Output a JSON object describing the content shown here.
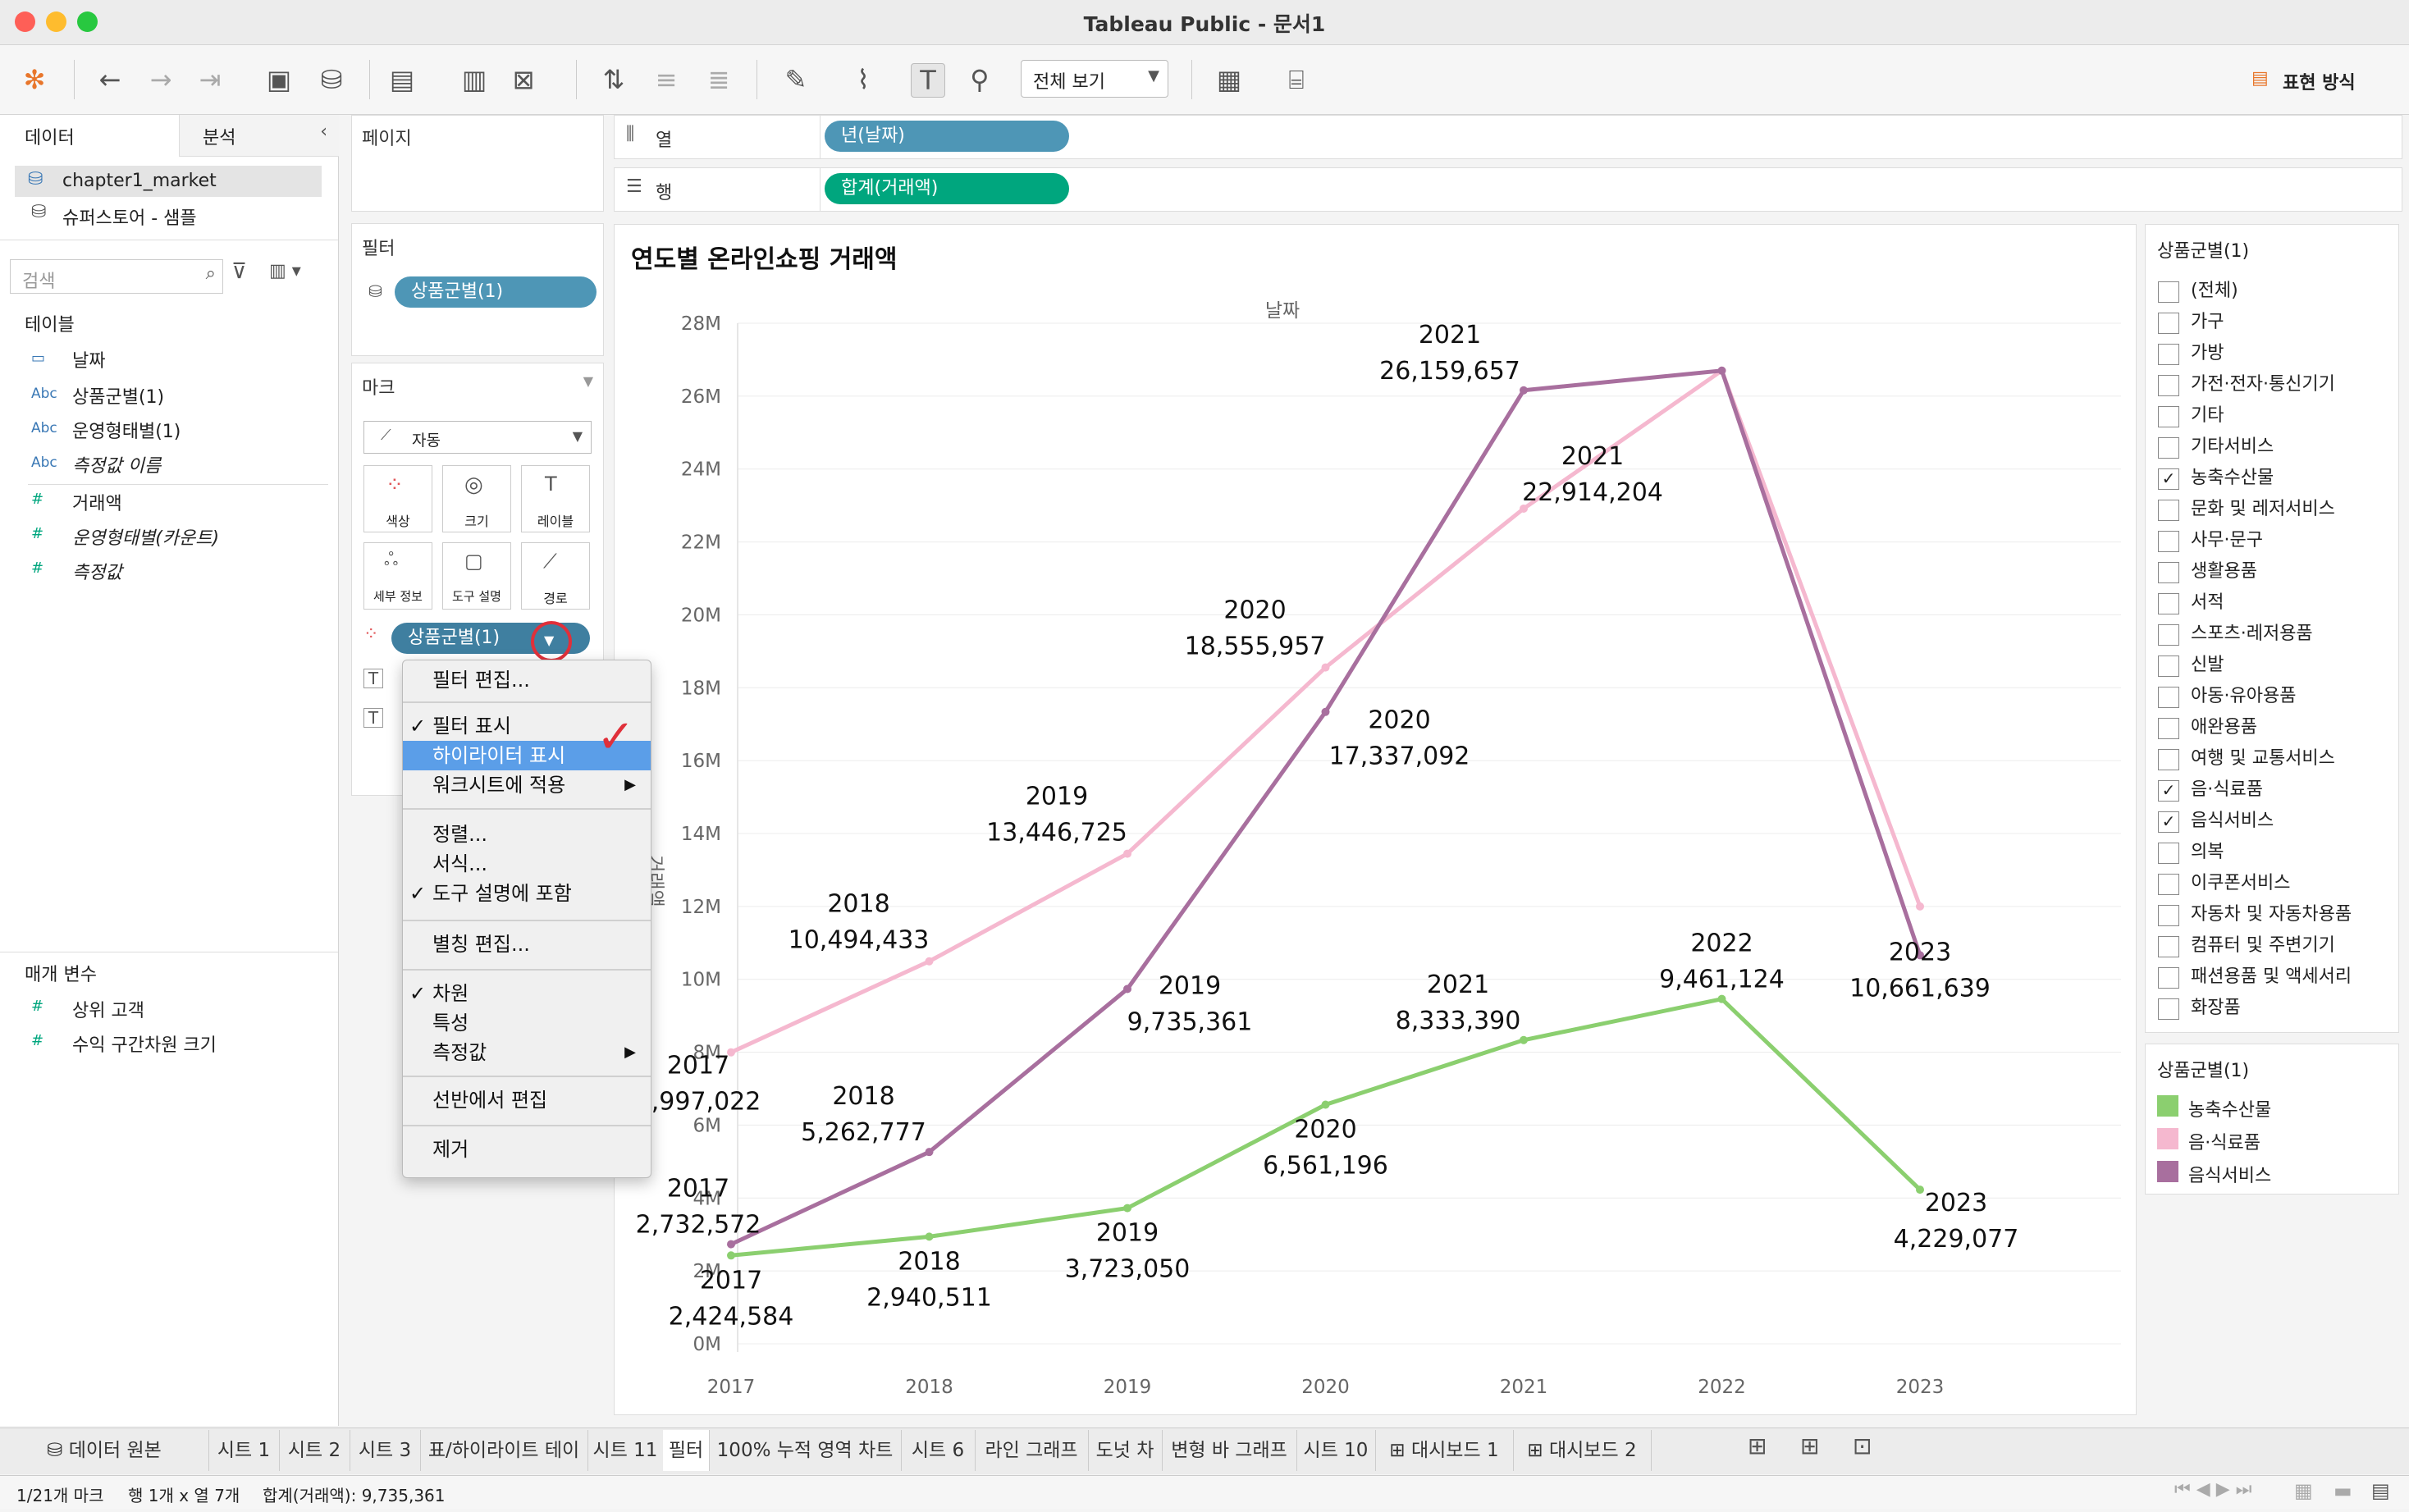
{
  "window": {
    "title": "Tableau Public - 문서1"
  },
  "toolbar": {
    "view_select": "전체 보기",
    "show_me": "표현 방식"
  },
  "data_pane": {
    "tab_data": "데이터",
    "tab_analysis": "분석",
    "sources": [
      "chapter1_market",
      "슈퍼스토어 - 샘플"
    ],
    "search_placeholder": "검색",
    "tables_heading": "테이블",
    "fields": [
      {
        "type": "date",
        "name": "날짜"
      },
      {
        "type": "Abc",
        "name": "상품군별(1)"
      },
      {
        "type": "Abc",
        "name": "운영형태별(1)"
      },
      {
        "type": "Abc",
        "name": "측정값 이름"
      },
      {
        "type": "#",
        "name": "거래액"
      },
      {
        "type": "#",
        "name": "운영형태별(카운트)"
      },
      {
        "type": "#",
        "name": "측정값"
      }
    ],
    "params_heading": "매개 변수",
    "params": [
      "상위 고객",
      "수익 구간차원 크기"
    ]
  },
  "pages_card": {
    "title": "페이지"
  },
  "filters_card": {
    "title": "필터",
    "pill": "상품군별(1)"
  },
  "marks_card": {
    "title": "마크",
    "mark_type": "자동",
    "buttons": [
      "색상",
      "크기",
      "레이블",
      "세부 정보",
      "도구 설명",
      "경로"
    ],
    "color_pill": "상품군별(1)"
  },
  "context_menu": {
    "items": [
      "필터 편집...",
      "필터 표시",
      "하이라이터 표시",
      "워크시트에 적용",
      "정렬...",
      "서식...",
      "도구 설명에 포함",
      "별칭 편집...",
      "차원",
      "특성",
      "측정값",
      "선반에서 편집",
      "제거"
    ]
  },
  "shelves": {
    "columns_label": "열",
    "columns_pill": "년(날짜)",
    "rows_label": "행",
    "rows_pill": "합계(거래액)"
  },
  "chart_data": {
    "type": "line",
    "title": "연도별 온라인쇼핑 거래액",
    "xlabel": "날짜",
    "ylabel": "거래액",
    "categories": [
      "2017",
      "2018",
      "2019",
      "2020",
      "2021",
      "2022",
      "2023"
    ],
    "ylim": [
      0,
      28000000
    ],
    "yticks": [
      "0M",
      "2M",
      "4M",
      "6M",
      "8M",
      "10M",
      "12M",
      "14M",
      "16M",
      "18M",
      "20M",
      "22M",
      "24M",
      "26M",
      "28M"
    ],
    "series": [
      {
        "name": "농축수산물",
        "color": "#8bcf6f",
        "values": [
          2424584,
          2940511,
          3723050,
          6561196,
          8333390,
          9461124,
          4229077
        ],
        "labels": [
          "2,424,584",
          "2,940,511",
          "3,723,050",
          "6,561,196",
          "8,333,390",
          "9,461,124",
          "4,229,077"
        ]
      },
      {
        "name": "음·식료품",
        "color": "#f5b8cf",
        "values": [
          7997022,
          10494433,
          13446725,
          18555957,
          22914204,
          26700000,
          12000000
        ],
        "labels": [
          "7,997,022",
          "10,494,433",
          "13,446,725",
          "18,555,957",
          "22,914,204",
          "",
          ""
        ]
      },
      {
        "name": "음식서비스",
        "color": "#a86f9e",
        "values": [
          2732572,
          5262777,
          9735361,
          17337092,
          26159657,
          26700000,
          10661639
        ],
        "labels": [
          "2,732,572",
          "5,262,777",
          "9,735,361",
          "17,337,092",
          "26,159,657",
          "",
          "10,661,639"
        ]
      }
    ]
  },
  "filter_panel": {
    "title": "상품군별(1)",
    "items": [
      {
        "label": "(전체)",
        "checked": false
      },
      {
        "label": "가구",
        "checked": false
      },
      {
        "label": "가방",
        "checked": false
      },
      {
        "label": "가전·전자·통신기기",
        "checked": false
      },
      {
        "label": "기타",
        "checked": false
      },
      {
        "label": "기타서비스",
        "checked": false
      },
      {
        "label": "농축수산물",
        "checked": true
      },
      {
        "label": "문화 및 레저서비스",
        "checked": false
      },
      {
        "label": "사무·문구",
        "checked": false
      },
      {
        "label": "생활용품",
        "checked": false
      },
      {
        "label": "서적",
        "checked": false
      },
      {
        "label": "스포츠·레저용품",
        "checked": false
      },
      {
        "label": "신발",
        "checked": false
      },
      {
        "label": "아동·유아용품",
        "checked": false
      },
      {
        "label": "애완용품",
        "checked": false
      },
      {
        "label": "여행 및 교통서비스",
        "checked": false
      },
      {
        "label": "음·식료품",
        "checked": true
      },
      {
        "label": "음식서비스",
        "checked": true
      },
      {
        "label": "의복",
        "checked": false
      },
      {
        "label": "이쿠폰서비스",
        "checked": false
      },
      {
        "label": "자동차 및 자동차용품",
        "checked": false
      },
      {
        "label": "컴퓨터 및 주변기기",
        "checked": false
      },
      {
        "label": "패션용품 및 액세서리",
        "checked": false
      },
      {
        "label": "화장품",
        "checked": false
      }
    ]
  },
  "legend": {
    "title": "상품군별(1)",
    "items": [
      {
        "label": "농축수산물",
        "color": "#8bcf6f"
      },
      {
        "label": "음·식료품",
        "color": "#f5b8cf"
      },
      {
        "label": "음식서비스",
        "color": "#a86f9e"
      }
    ]
  },
  "tabs": [
    "데이터 원본",
    "시트 1",
    "시트 2",
    "시트 3",
    "표/하이라이트 테이블",
    "시트 11",
    "필터",
    "100% 누적 영역 차트",
    "시트 6",
    "라인 그래프",
    "도넛 차트",
    "변형 바 그래프",
    "시트 10",
    "대시보드 1",
    "대시보드 2"
  ],
  "status": {
    "marks": "1/21개 마크",
    "rows_cols": "행 1개 x 열 7개",
    "sum": "합계(거래액): 9,735,361"
  }
}
